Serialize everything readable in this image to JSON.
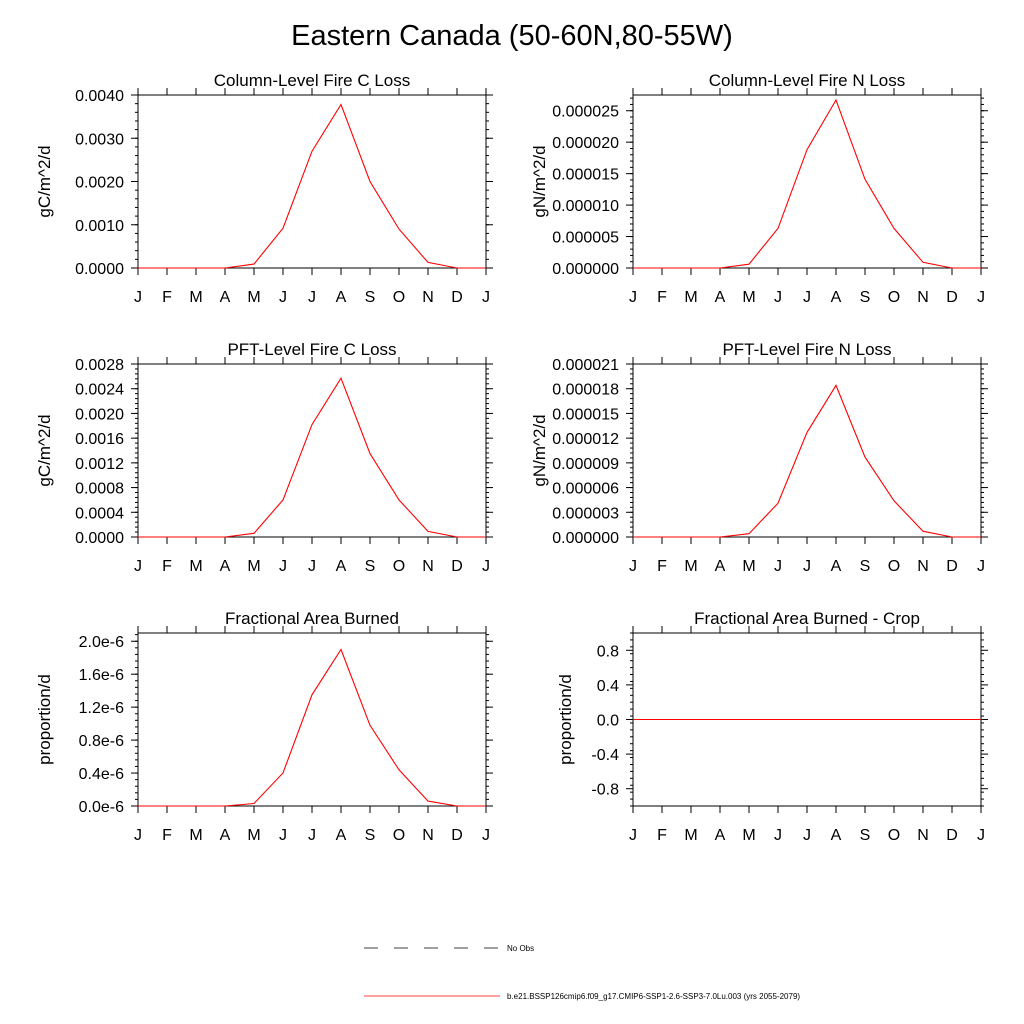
{
  "title": "Eastern Canada (50-60N,80-55W)",
  "colors": {
    "model": "#ff0000",
    "obs": "#000000",
    "axis": "#000000"
  },
  "chart_data": [
    {
      "type": "line",
      "title": "Column-Level Fire C Loss",
      "ylabel": "gC/m^2/d",
      "xlabel": "",
      "categories": [
        "J",
        "F",
        "M",
        "A",
        "M",
        "J",
        "J",
        "A",
        "S",
        "O",
        "N",
        "D",
        "J"
      ],
      "ylim": [
        0,
        0.004
      ],
      "yticks": [
        0,
        0.001,
        0.002,
        0.003,
        0.004
      ],
      "ytick_labels": [
        "0.0000",
        "0.0010",
        "0.0020",
        "0.0030",
        "0.0040"
      ],
      "series": [
        {
          "name": "b.e21.BSSP126cmip6.f09_g17.CMIP6-SSP1-2.6-SSP3-7.0Lu.003 (yrs 2055-2079)",
          "values": [
            0.0,
            0.0,
            0.0,
            0.0,
            9e-05,
            0.00092,
            0.0027,
            0.00378,
            0.002,
            0.0009,
            0.00013,
            0.0,
            0.0
          ]
        }
      ]
    },
    {
      "type": "line",
      "title": "Column-Level Fire N Loss",
      "ylabel": "gN/m^2/d",
      "xlabel": "",
      "categories": [
        "J",
        "F",
        "M",
        "A",
        "M",
        "J",
        "J",
        "A",
        "S",
        "O",
        "N",
        "D",
        "J"
      ],
      "ylim": [
        0,
        2.75e-05
      ],
      "yticks": [
        0,
        5e-06,
        1e-05,
        1.5e-05,
        2e-05,
        2.5e-05
      ],
      "ytick_labels": [
        "0.000000",
        "0.000005",
        "0.000010",
        "0.000015",
        "0.000020",
        "0.000025"
      ],
      "series": [
        {
          "name": "b.e21.BSSP126cmip6.f09_g17.CMIP6-SSP1-2.6-SSP3-7.0Lu.003 (yrs 2055-2079)",
          "values": [
            0.0,
            0.0,
            0.0,
            0.0,
            6e-07,
            6.3e-06,
            1.88e-05,
            2.67e-05,
            1.41e-05,
            6.3e-06,
            9e-07,
            0.0,
            0.0
          ]
        }
      ]
    },
    {
      "type": "line",
      "title": "PFT-Level Fire C Loss",
      "ylabel": "gC/m^2/d",
      "xlabel": "",
      "categories": [
        "J",
        "F",
        "M",
        "A",
        "M",
        "J",
        "J",
        "A",
        "S",
        "O",
        "N",
        "D",
        "J"
      ],
      "ylim": [
        0,
        0.0028
      ],
      "yticks": [
        0,
        0.0004,
        0.0008,
        0.0012,
        0.0016,
        0.002,
        0.0024,
        0.0028
      ],
      "ytick_labels": [
        "0.0000",
        "0.0004",
        "0.0008",
        "0.0012",
        "0.0016",
        "0.0020",
        "0.0024",
        "0.0028"
      ],
      "series": [
        {
          "name": "b.e21.BSSP126cmip6.f09_g17.CMIP6-SSP1-2.6-SSP3-7.0Lu.003 (yrs 2055-2079)",
          "values": [
            0.0,
            0.0,
            0.0,
            0.0,
            6e-05,
            0.0006,
            0.00182,
            0.00257,
            0.00135,
            0.0006,
            9e-05,
            0.0,
            0.0
          ]
        }
      ]
    },
    {
      "type": "line",
      "title": "PFT-Level Fire N Loss",
      "ylabel": "gN/m^2/d",
      "xlabel": "",
      "categories": [
        "J",
        "F",
        "M",
        "A",
        "M",
        "J",
        "J",
        "A",
        "S",
        "O",
        "N",
        "D",
        "J"
      ],
      "ylim": [
        0,
        2.1e-05
      ],
      "yticks": [
        0,
        3e-06,
        6e-06,
        9e-06,
        1.2e-05,
        1.5e-05,
        1.8e-05,
        2.1e-05
      ],
      "ytick_labels": [
        "0.000000",
        "0.000003",
        "0.000006",
        "0.000009",
        "0.000012",
        "0.000015",
        "0.000018",
        "0.000021"
      ],
      "series": [
        {
          "name": "b.e21.BSSP126cmip6.f09_g17.CMIP6-SSP1-2.6-SSP3-7.0Lu.003 (yrs 2055-2079)",
          "values": [
            0.0,
            0.0,
            0.0,
            0.0,
            4e-07,
            4.1e-06,
            1.27e-05,
            1.84e-05,
            9.7e-06,
            4.4e-06,
            7e-07,
            0.0,
            0.0
          ]
        }
      ]
    },
    {
      "type": "line",
      "title": "Fractional Area Burned",
      "ylabel": "proportion/d",
      "xlabel": "",
      "categories": [
        "J",
        "F",
        "M",
        "A",
        "M",
        "J",
        "J",
        "A",
        "S",
        "O",
        "N",
        "D",
        "J"
      ],
      "ylim": [
        0,
        2.1e-06
      ],
      "yticks": [
        0,
        4e-07,
        8e-07,
        1.2e-06,
        1.6e-06,
        2e-06
      ],
      "ytick_labels": [
        "0.0e-6",
        "0.4e-6",
        "0.8e-6",
        "1.2e-6",
        "1.6e-6",
        "2.0e-6"
      ],
      "series": [
        {
          "name": "b.e21.BSSP126cmip6.f09_g17.CMIP6-SSP1-2.6-SSP3-7.0Lu.003 (yrs 2055-2079)",
          "values": [
            0.0,
            0.0,
            0.0,
            0.0,
            3e-08,
            4e-07,
            1.35e-06,
            1.9e-06,
            9.8e-07,
            4.4e-07,
            6e-08,
            0.0,
            0.0
          ]
        }
      ]
    },
    {
      "type": "line",
      "title": "Fractional Area Burned - Crop",
      "ylabel": "proportion/d",
      "xlabel": "",
      "categories": [
        "J",
        "F",
        "M",
        "A",
        "M",
        "J",
        "J",
        "A",
        "S",
        "O",
        "N",
        "D",
        "J"
      ],
      "ylim": [
        -1,
        1
      ],
      "yticks": [
        -0.8,
        -0.4,
        0.0,
        0.4,
        0.8
      ],
      "ytick_labels": [
        "-0.8",
        "-0.4",
        "0.0",
        "0.4",
        "0.8"
      ],
      "series": [
        {
          "name": "b.e21.BSSP126cmip6.f09_g17.CMIP6-SSP1-2.6-SSP3-7.0Lu.003 (yrs 2055-2079)",
          "values": [
            0,
            0,
            0,
            0,
            0,
            0,
            0,
            0,
            0,
            0,
            0,
            0,
            0
          ]
        }
      ]
    }
  ],
  "legend": {
    "obs_label": "No Obs",
    "model_label": "b.e21.BSSP126cmip6.f09_g17.CMIP6-SSP1-2.6-SSP3-7.0Lu.003 (yrs 2055-2079)"
  }
}
